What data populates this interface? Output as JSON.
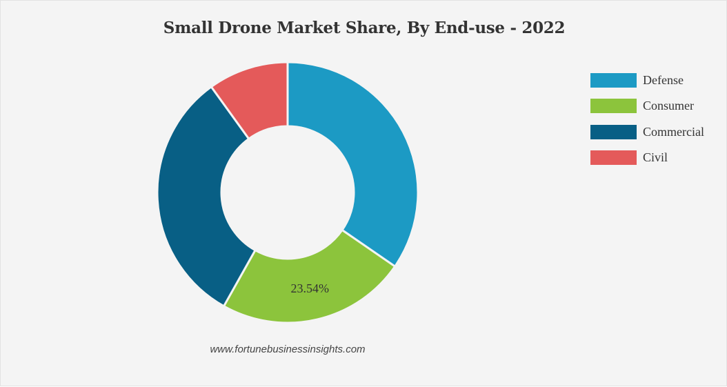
{
  "chart_data": {
    "type": "pie",
    "title": "Small Drone Market Share, By End-use - 2022",
    "series": [
      {
        "name": "",
        "values": [
          {
            "label": "Defense",
            "value": 34.6,
            "color": "#1c9ac4"
          },
          {
            "label": "Consumer",
            "value": 23.54,
            "color": "#8cc43c"
          },
          {
            "label": "Commercial",
            "value": 31.9,
            "color": "#085f85"
          },
          {
            "label": "Civil",
            "value": 9.96,
            "color": "#e45a5a"
          }
        ]
      }
    ],
    "categories": [
      "Defense",
      "Consumer",
      "Commercial",
      "Civil"
    ],
    "visible_data_labels": [
      {
        "category": "Consumer",
        "text": "23.54%"
      }
    ],
    "legend_position": "right"
  },
  "legend": {
    "items": [
      {
        "label": "Defense",
        "color": "#1c9ac4"
      },
      {
        "label": "Consumer",
        "color": "#8cc43c"
      },
      {
        "label": "Commercial",
        "color": "#085f85"
      },
      {
        "label": "Civil",
        "color": "#e45a5a"
      }
    ]
  },
  "watermark": "www.fortunebusinessinsights.com"
}
